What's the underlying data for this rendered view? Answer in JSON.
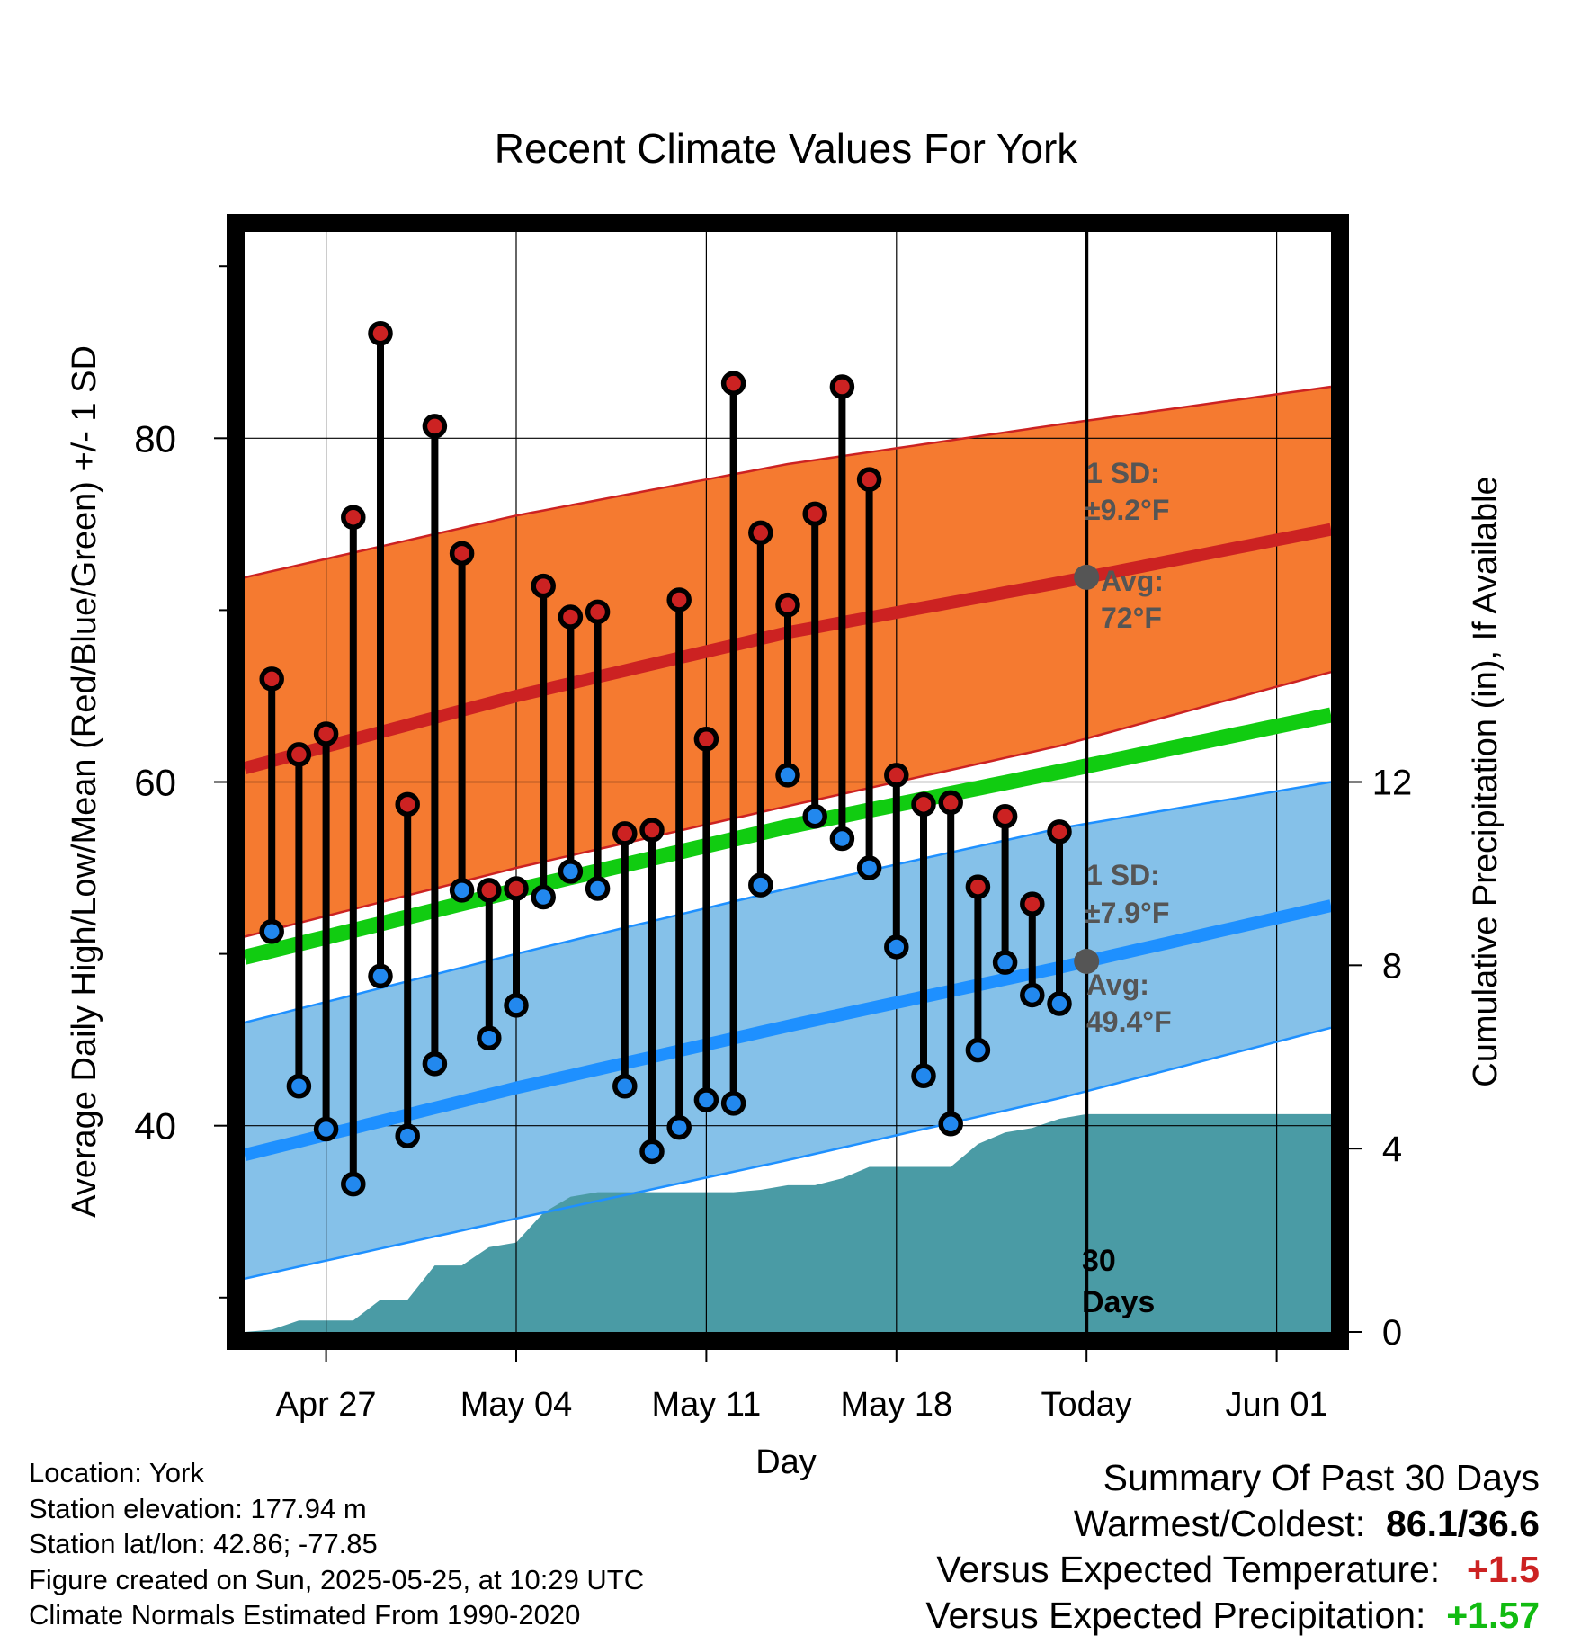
{
  "chart_data": {
    "type": "line",
    "title": "Recent Climate Values For York",
    "xlabel": "Day",
    "ylabel": "Average Daily High/Low/Mean (Red/Blue/Green) +/- 1 SD",
    "y2label": "Cumulative Precipitation (in), If Available",
    "x_range": [
      "2025-04-24",
      "2025-06-03"
    ],
    "ylim": [
      28,
      92
    ],
    "y2lim": [
      0,
      24
    ],
    "x_ticks": [
      {
        "date": "2025-04-27",
        "label": "Apr 27"
      },
      {
        "date": "2025-05-04",
        "label": "May 04"
      },
      {
        "date": "2025-05-11",
        "label": "May 11"
      },
      {
        "date": "2025-05-18",
        "label": "May 18"
      },
      {
        "date": "2025-05-25",
        "label": "Today"
      },
      {
        "date": "2025-06-01",
        "label": "Jun 01"
      }
    ],
    "y_ticks": [
      40,
      60,
      80
    ],
    "y_minor_ticks": [
      30,
      50,
      70,
      90
    ],
    "y2_ticks": [
      0,
      4,
      8,
      12
    ],
    "grid": true,
    "today": "2025-05-25",
    "today_label": [
      "30",
      "Days"
    ],
    "normals": {
      "dates": [
        "2025-04-24",
        "2025-05-04",
        "2025-05-14",
        "2025-05-24",
        "2025-06-03"
      ],
      "high_avg": [
        60.8,
        65.0,
        68.7,
        71.6,
        74.7
      ],
      "high_upper": [
        71.9,
        75.5,
        78.5,
        80.8,
        83.0
      ],
      "high_lower": [
        51.0,
        55.0,
        58.6,
        62.1,
        66.4
      ],
      "mean_avg": [
        49.8,
        53.7,
        57.4,
        60.6,
        63.9
      ],
      "low_avg": [
        38.3,
        42.2,
        45.8,
        49.2,
        52.8
      ],
      "low_upper": [
        46.0,
        50.0,
        53.8,
        57.3,
        60.0
      ],
      "low_lower": [
        31.1,
        34.6,
        38.0,
        41.6,
        45.7
      ]
    },
    "high_label": [
      "1 SD:",
      "±9.2°F",
      "Avg:",
      "72°F"
    ],
    "low_label": [
      "1 SD:",
      "±7.9°F",
      "Avg:",
      "49.4°F"
    ],
    "series": [
      {
        "name": "High",
        "color": "#cc2222",
        "x": [
          "2025-04-25",
          "2025-04-26",
          "2025-04-27",
          "2025-04-28",
          "2025-04-29",
          "2025-04-30",
          "2025-05-01",
          "2025-05-02",
          "2025-05-03",
          "2025-05-04",
          "2025-05-05",
          "2025-05-06",
          "2025-05-07",
          "2025-05-08",
          "2025-05-09",
          "2025-05-10",
          "2025-05-11",
          "2025-05-12",
          "2025-05-13",
          "2025-05-14",
          "2025-05-15",
          "2025-05-16",
          "2025-05-17",
          "2025-05-18",
          "2025-05-19",
          "2025-05-20",
          "2025-05-21",
          "2025-05-22",
          "2025-05-23",
          "2025-05-24"
        ],
        "values": [
          66.0,
          61.6,
          62.8,
          75.4,
          86.1,
          58.7,
          80.7,
          73.3,
          53.7,
          53.8,
          71.4,
          69.6,
          69.9,
          57.0,
          57.2,
          70.6,
          62.5,
          83.2,
          74.5,
          70.3,
          75.6,
          83.0,
          77.6,
          60.4,
          58.7,
          58.8,
          53.9,
          58.0,
          52.9,
          57.1
        ]
      },
      {
        "name": "Low",
        "color": "#2288ee",
        "x": [
          "2025-04-25",
          "2025-04-26",
          "2025-04-27",
          "2025-04-28",
          "2025-04-29",
          "2025-04-30",
          "2025-05-01",
          "2025-05-02",
          "2025-05-03",
          "2025-05-04",
          "2025-05-05",
          "2025-05-06",
          "2025-05-07",
          "2025-05-08",
          "2025-05-09",
          "2025-05-10",
          "2025-05-11",
          "2025-05-12",
          "2025-05-13",
          "2025-05-14",
          "2025-05-15",
          "2025-05-16",
          "2025-05-17",
          "2025-05-18",
          "2025-05-19",
          "2025-05-20",
          "2025-05-21",
          "2025-05-22",
          "2025-05-23",
          "2025-05-24"
        ],
        "values": [
          51.3,
          42.3,
          39.8,
          36.6,
          48.7,
          39.4,
          43.6,
          53.7,
          45.1,
          47.0,
          53.3,
          54.8,
          53.8,
          42.3,
          38.5,
          39.9,
          41.5,
          41.3,
          54.0,
          60.4,
          58.0,
          56.7,
          55.0,
          50.4,
          42.9,
          40.1,
          44.4,
          49.5,
          47.6,
          47.1
        ]
      },
      {
        "name": "Cumulative Precipitation",
        "color": "#4a9ba5",
        "x": [
          "2025-04-24",
          "2025-04-25",
          "2025-04-26",
          "2025-04-27",
          "2025-04-28",
          "2025-04-29",
          "2025-04-30",
          "2025-05-01",
          "2025-05-02",
          "2025-05-03",
          "2025-05-04",
          "2025-05-05",
          "2025-05-06",
          "2025-05-07",
          "2025-05-08",
          "2025-05-09",
          "2025-05-10",
          "2025-05-11",
          "2025-05-12",
          "2025-05-13",
          "2025-05-14",
          "2025-05-15",
          "2025-05-16",
          "2025-05-17",
          "2025-05-18",
          "2025-05-19",
          "2025-05-20",
          "2025-05-21",
          "2025-05-22",
          "2025-05-23",
          "2025-05-24",
          "2025-05-25",
          "2025-06-03"
        ],
        "values": [
          0.0,
          0.05,
          0.25,
          0.25,
          0.25,
          0.7,
          0.7,
          1.45,
          1.45,
          1.85,
          1.95,
          2.6,
          2.95,
          3.05,
          3.05,
          3.05,
          3.05,
          3.05,
          3.05,
          3.1,
          3.2,
          3.2,
          3.35,
          3.6,
          3.6,
          3.6,
          3.6,
          4.1,
          4.35,
          4.45,
          4.65,
          4.75,
          4.75
        ]
      }
    ]
  },
  "info": {
    "location": "Location: York",
    "elevation": "Station elevation: 177.94 m",
    "latlon": "Station lat/lon: 42.86; -77.85",
    "created": "Figure created on Sun, 2025-05-25, at 10:29 UTC",
    "normals": "Climate Normals Estimated From 1990-2020"
  },
  "summary": {
    "title": "Summary Of Past 30 Days",
    "warmest_label": "Warmest/Coldest:",
    "warmest_value": "86.1",
    "coldest_value": "36.6",
    "temp_label": "Versus Expected Temperature:",
    "temp_value": "+1.5",
    "temp_color": "#cc2222",
    "precip_label": "Versus Expected Precipitation:",
    "precip_value": "+1.57",
    "precip_color": "#11bb11"
  },
  "colors": {
    "high_band": "#f57a30",
    "high_line": "#cc2222",
    "mean_line": "#11cc11",
    "low_band": "#85c1e9",
    "low_line": "#1e90ff",
    "precip_fill": "#4a9ba5",
    "label_text": "#555555"
  }
}
